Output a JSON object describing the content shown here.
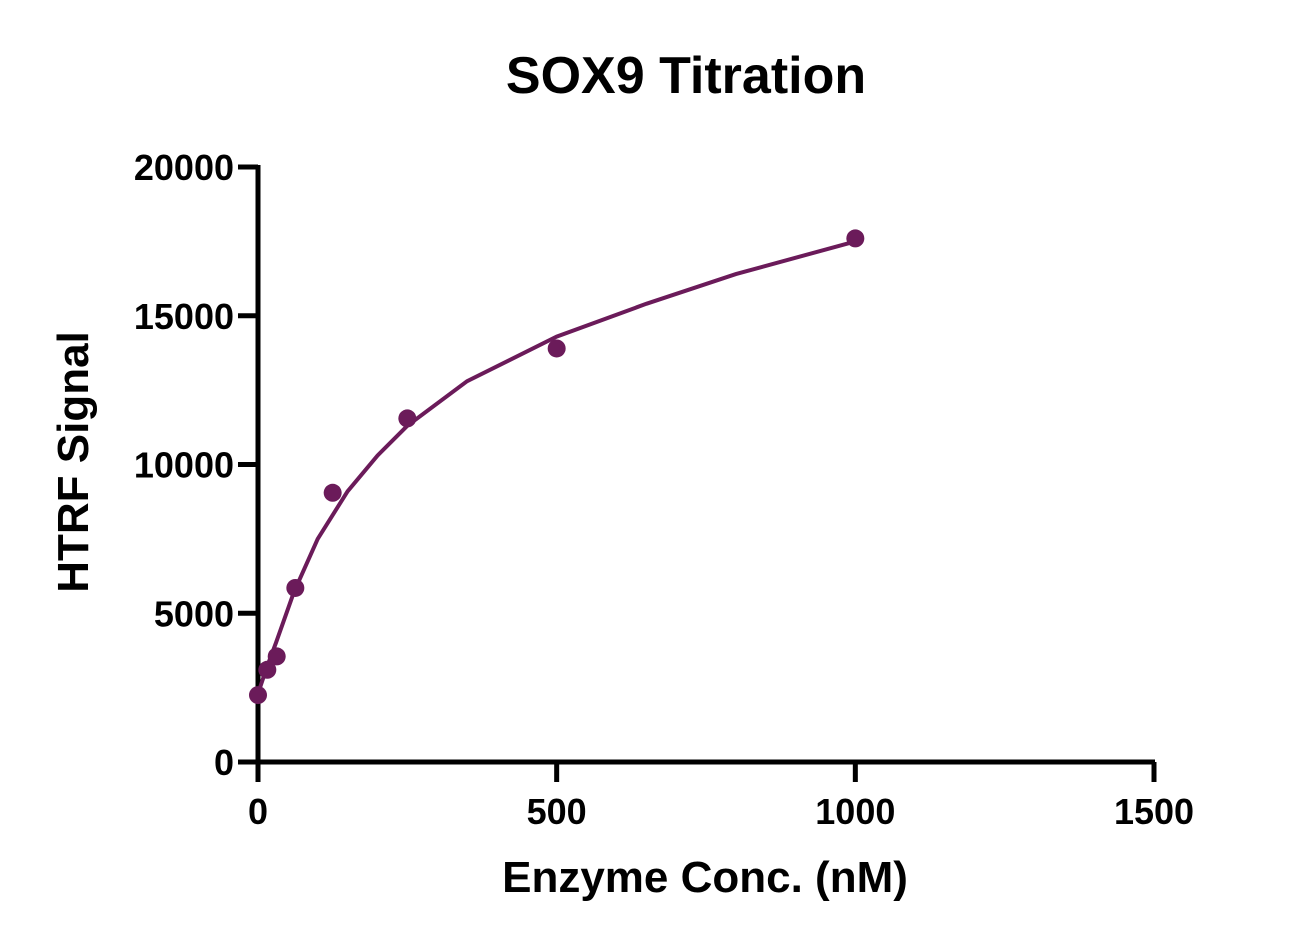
{
  "chart_data": {
    "type": "scatter",
    "title": "SOX9 Titration",
    "xlabel": "Enzyme Conc. (nM)",
    "ylabel": "HTRF Signal",
    "xlim": [
      0,
      1500
    ],
    "ylim": [
      0,
      20000
    ],
    "x_ticks": [
      "0",
      "500",
      "1000",
      "1500"
    ],
    "y_ticks": [
      "0",
      "5000",
      "10000",
      "15000",
      "20000"
    ],
    "grid": false,
    "legend": "none",
    "color": "#6b1b5a",
    "series": [
      {
        "points": [
          {
            "x": 0,
            "y": 2250
          },
          {
            "x": 15.6,
            "y": 3100
          },
          {
            "x": 31.3,
            "y": 3550
          },
          {
            "x": 62.5,
            "y": 5850
          },
          {
            "x": 125,
            "y": 9050
          },
          {
            "x": 250,
            "y": 11550
          },
          {
            "x": 500,
            "y": 13900
          },
          {
            "x": 1000,
            "y": 17600
          }
        ],
        "fit_curve": [
          {
            "x": 0,
            "y": 2300
          },
          {
            "x": 15,
            "y": 3200
          },
          {
            "x": 30,
            "y": 4000
          },
          {
            "x": 60,
            "y": 5700
          },
          {
            "x": 100,
            "y": 7500
          },
          {
            "x": 150,
            "y": 9100
          },
          {
            "x": 200,
            "y": 10300
          },
          {
            "x": 250,
            "y": 11300
          },
          {
            "x": 350,
            "y": 12800
          },
          {
            "x": 500,
            "y": 14300
          },
          {
            "x": 650,
            "y": 15400
          },
          {
            "x": 800,
            "y": 16400
          },
          {
            "x": 1000,
            "y": 17500
          }
        ]
      }
    ]
  }
}
